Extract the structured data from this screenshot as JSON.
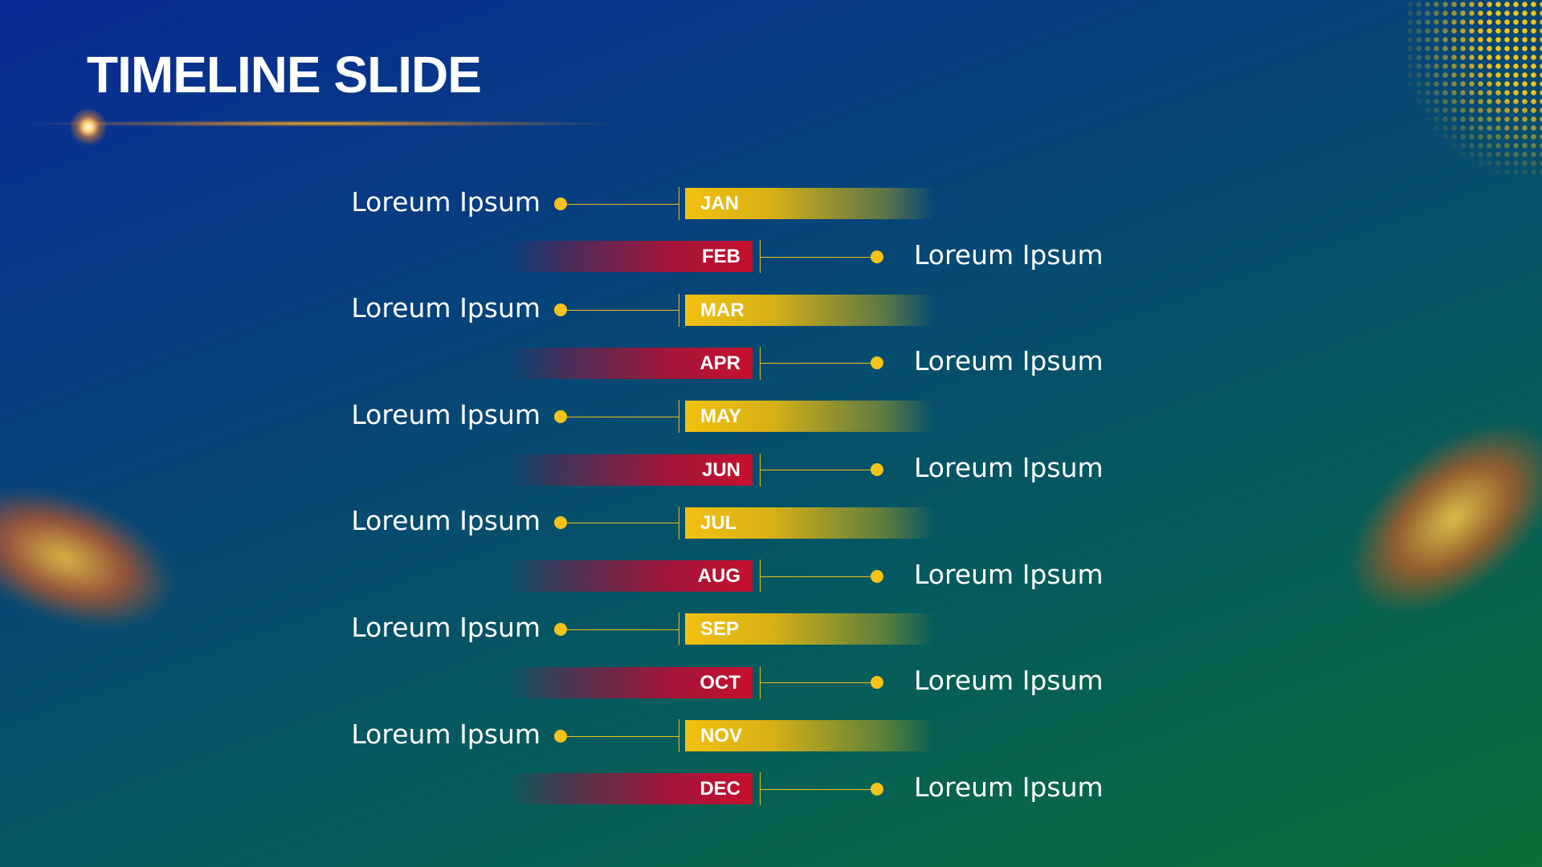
{
  "header": {
    "title": "TIMELINE SLIDE"
  },
  "timeline": {
    "items": [
      {
        "month": "JAN",
        "label": "Loreum Ipsum"
      },
      {
        "month": "FEB",
        "label": "Loreum Ipsum"
      },
      {
        "month": "MAR",
        "label": "Loreum Ipsum"
      },
      {
        "month": "APR",
        "label": "Loreum Ipsum"
      },
      {
        "month": "MAY",
        "label": "Loreum Ipsum"
      },
      {
        "month": "JUN",
        "label": "Loreum Ipsum"
      },
      {
        "month": "JUL",
        "label": "Loreum Ipsum"
      },
      {
        "month": "AUG",
        "label": "Loreum Ipsum"
      },
      {
        "month": "SEP",
        "label": "Loreum Ipsum"
      },
      {
        "month": "OCT",
        "label": "Loreum Ipsum"
      },
      {
        "month": "NOV",
        "label": "Loreum Ipsum"
      },
      {
        "month": "DEC",
        "label": "Loreum Ipsum"
      }
    ]
  }
}
